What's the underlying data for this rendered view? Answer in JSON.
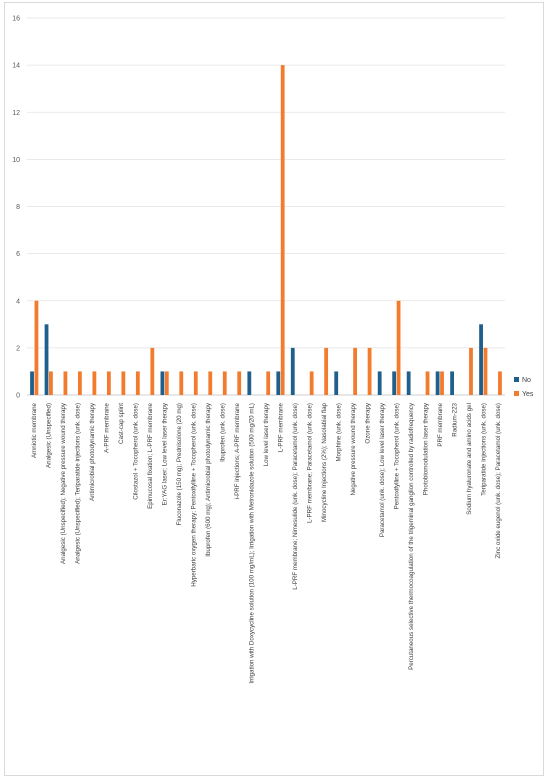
{
  "colors": {
    "no": "#1f5f8b",
    "yes": "#f27b2e",
    "grid": "#e3e3e3",
    "axis": "#bfbfbf"
  },
  "chart_data": {
    "type": "bar",
    "title": "",
    "xlabel": "",
    "ylabel": "",
    "ylim": [
      0,
      16
    ],
    "yticks": [
      "0",
      "2",
      "4",
      "6",
      "8",
      "10",
      "12",
      "14",
      "16"
    ],
    "grid": true,
    "legend_position": "right",
    "categories": [
      "Amniotic membrane",
      "Analgesic (Unspecified)",
      "Analgesic (Unspecified); Negative pressure wound therapy",
      "Analgesic (Unspecified); Teriparatide injections (unk. dose)",
      "Antimicrobial photodynamic therapy",
      "A-PRF membrane",
      "Cast-cap splint",
      "Cilostazol + Tocopherol (unk. dose)",
      "Epimucosal fixation; L-PRF membrane",
      "Er:YAG laser; Low level laser therapy",
      "Fluconazole (150 mg); Prednisolone (20 mg)",
      "Hyperbaric oxygen therapy; Pentoxifylline + Tocopherol (unk. dose)",
      "Ibuprofen (600 mg); Antimicrobial photodynamic therapy",
      "Ibuprofen (unk. dose)",
      "i-PRF injections; A-PRF membrane",
      "Irrigation with Doxycycline solution (100 mg/mL); Irrigation with Metronidazole solution (500 mg/20 mL)",
      "Low level laser therapy",
      "L-PRF membrane",
      "L-PRF membrane; Nimesulide (unk. dose); Paracetamol (unk. dose)",
      "L-PRF membrane; Paracetamol (unk. dose)",
      "Minocycline Injections (2%); Nasolabial flap",
      "Morphine (unk. dose)",
      "Negative pressure wound therapy",
      "Ozone therapy",
      "Paracetamol (unk. dose); Low level laser therapy",
      "Pentoxifylline + Tocopherol (unk. dose)",
      "Percutaneous selective thermocoagulation of the trigeminal ganglion controlled by radiofrequency",
      "Photobiomodulation laser therapy",
      "PRF membrane",
      "Radium-223",
      "Sodium hyaluronate and amino acids gel",
      "Teriparatide Injections (unk. dose)",
      "Zinc oxide eugenol (unk. dose); Paracetamol (unk. dose)"
    ],
    "series": [
      {
        "name": "No",
        "values": [
          1,
          3,
          0,
          0,
          0,
          0,
          0,
          0,
          0,
          1,
          0,
          0,
          0,
          0,
          0,
          1,
          0,
          1,
          2,
          0,
          0,
          1,
          0,
          0,
          1,
          1,
          1,
          0,
          1,
          1,
          0,
          3,
          0
        ]
      },
      {
        "name": "Yes",
        "values": [
          4,
          1,
          1,
          1,
          1,
          1,
          1,
          1,
          2,
          1,
          1,
          1,
          1,
          1,
          1,
          0,
          1,
          14,
          0,
          1,
          2,
          0,
          2,
          2,
          0,
          4,
          0,
          1,
          1,
          0,
          2,
          2,
          1
        ]
      }
    ]
  }
}
